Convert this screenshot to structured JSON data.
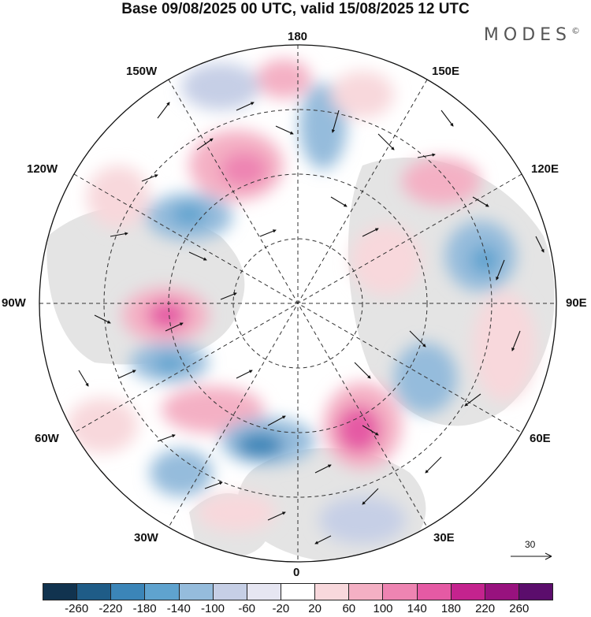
{
  "header": {
    "title": "Base 09/08/2025 00 UTC, valid 15/08/2025 12 UTC",
    "brand": "MODES",
    "brand_mark": "©"
  },
  "map": {
    "labels": {
      "top": "180",
      "bottom": "0",
      "left": "90W",
      "right": "90E",
      "upper_left_1": "150W",
      "upper_left_2": "120W",
      "upper_right_1": "150E",
      "upper_right_2": "120E",
      "lower_left_1": "60W",
      "lower_left_2": "30W",
      "lower_right_1": "60E",
      "lower_right_2": "30E"
    },
    "reference_vector": "30"
  },
  "colorbar": {
    "colors": [
      "#11334f",
      "#1f5c87",
      "#3b85b8",
      "#5fa3cf",
      "#95bcdc",
      "#c6cfe6",
      "#e6e6f2",
      "#ffffff",
      "#f8d8dc",
      "#f4b0c4",
      "#ee84b2",
      "#e55aa4",
      "#c4238e",
      "#98127e",
      "#5b0d6c"
    ],
    "ticks": [
      "-260",
      "-220",
      "-180",
      "-140",
      "-100",
      "-60",
      "-20",
      "20",
      "60",
      "100",
      "140",
      "180",
      "220",
      "260"
    ]
  }
}
